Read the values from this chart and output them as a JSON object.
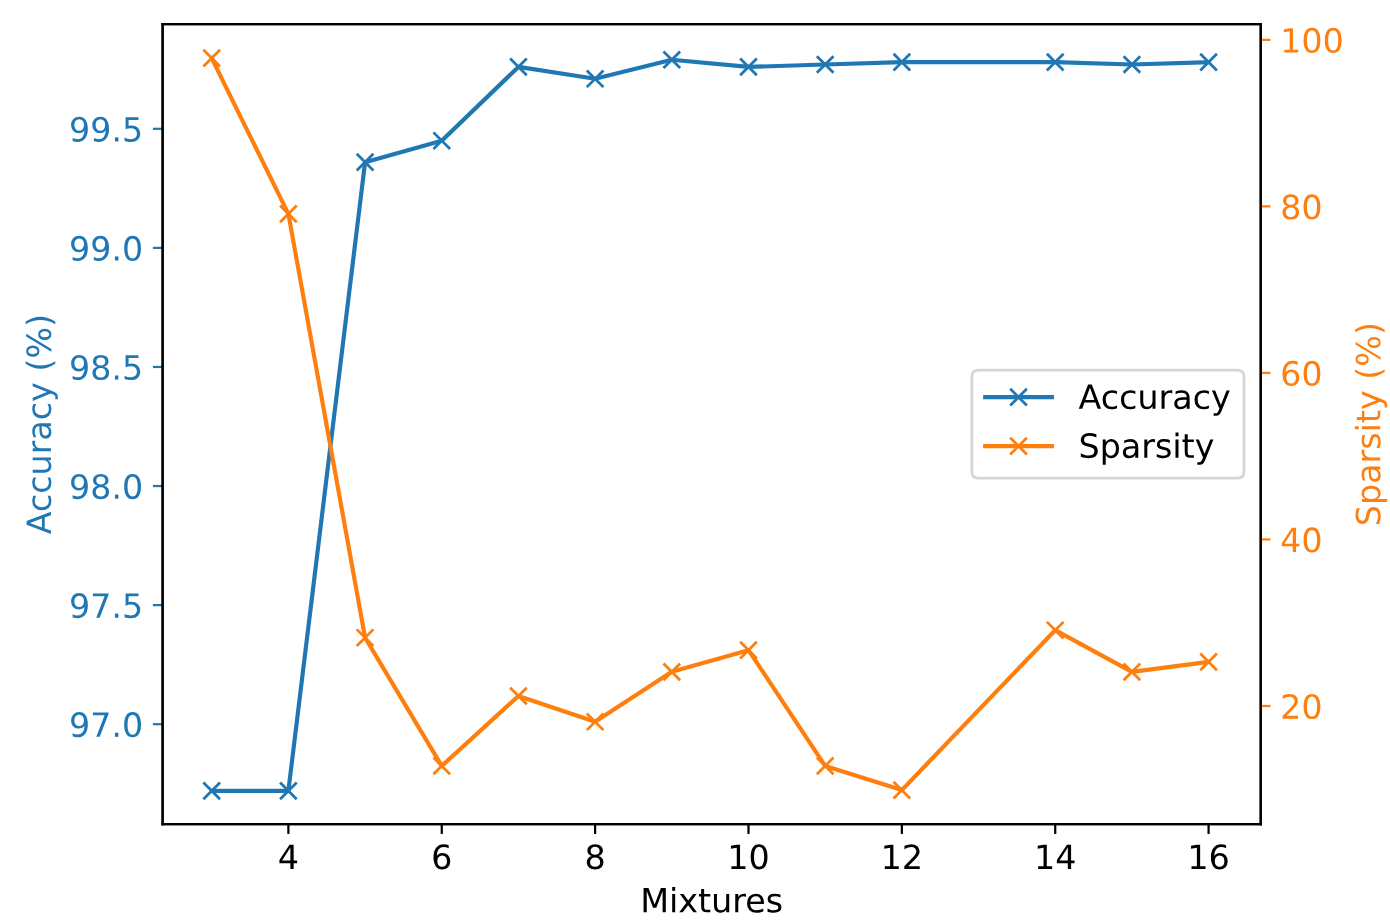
{
  "chart_data": {
    "type": "line",
    "xlabel": "Mixtures",
    "ylabel": "Accuracy (%)",
    "y2label": "Sparsity (%)",
    "x": [
      3,
      4,
      5,
      6,
      7,
      8,
      9,
      10,
      11,
      12,
      14,
      15,
      16
    ],
    "series": [
      {
        "name": "Accuracy",
        "color": "#1f77b4",
        "values": [
          96.72,
          96.72,
          99.36,
          99.45,
          99.76,
          99.71,
          99.79,
          99.76,
          99.77,
          99.78,
          99.78,
          99.77,
          99.78
        ]
      },
      {
        "name": "Sparsity",
        "color": "#ff7f0e",
        "axis": "y2",
        "values": [
          97.8,
          79.1,
          28.2,
          12.8,
          21.2,
          18.1,
          24.1,
          26.7,
          12.8,
          9.9,
          29.1,
          24.1,
          25.3
        ]
      }
    ],
    "xlim": [
      2.36,
      16.68
    ],
    "xticks": [
      4,
      6,
      8,
      10,
      12,
      14,
      16
    ],
    "ylim": [
      96.58,
      99.94
    ],
    "yticks": [
      {
        "value": 97,
        "label": "97.0"
      },
      97.5,
      {
        "value": 98,
        "label": "98.0"
      },
      98.5,
      {
        "value": 99,
        "label": "99.0"
      },
      99.5
    ],
    "y2lim": [
      5.8,
      101.9
    ],
    "y2ticks": [
      20,
      40,
      60,
      80,
      100
    ],
    "marker": "cross",
    "legend": "right",
    "grid": false
  }
}
